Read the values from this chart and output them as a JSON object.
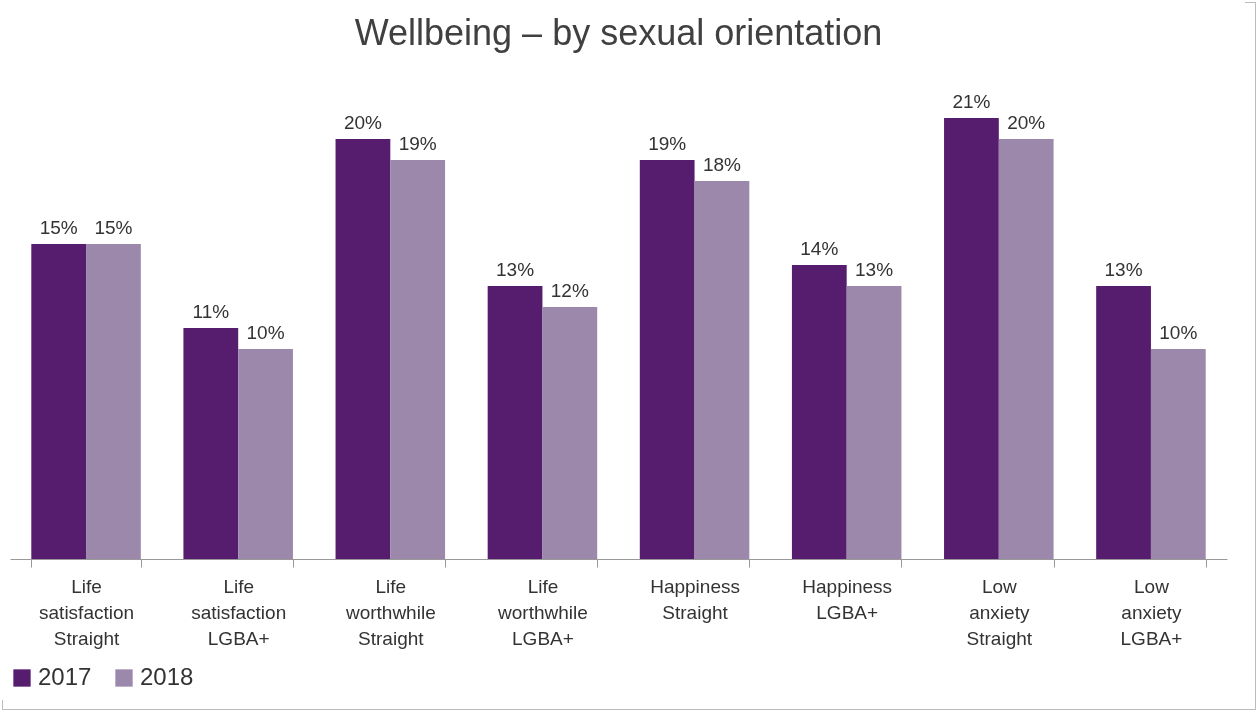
{
  "chart_data": {
    "type": "bar",
    "title": "Wellbeing – by sexual orientation",
    "categories": [
      "Life satisfaction Straight",
      "Life satisfaction LGBA+",
      "Life worthwhile Straight",
      "Life worthwhile LGBA+",
      "Happiness Straight",
      "Happiness LGBA+",
      "Low anxiety Straight",
      "Low anxiety LGBA+"
    ],
    "series": [
      {
        "name": "2017",
        "color": "#561c6e",
        "values": [
          15,
          11,
          20,
          13,
          19,
          14,
          21,
          13
        ],
        "value_labels": [
          "15%",
          "11%",
          "20%",
          "13%",
          "19%",
          "14%",
          "21%",
          "13%"
        ]
      },
      {
        "name": "2018",
        "color": "#9b88aa",
        "values": [
          15,
          10,
          19,
          12,
          18,
          13,
          20,
          10
        ],
        "value_labels": [
          "15%",
          "10%",
          "19%",
          "12%",
          "18%",
          "13%",
          "20%",
          "10%"
        ]
      }
    ],
    "legend": "bottom",
    "grid": false
  }
}
